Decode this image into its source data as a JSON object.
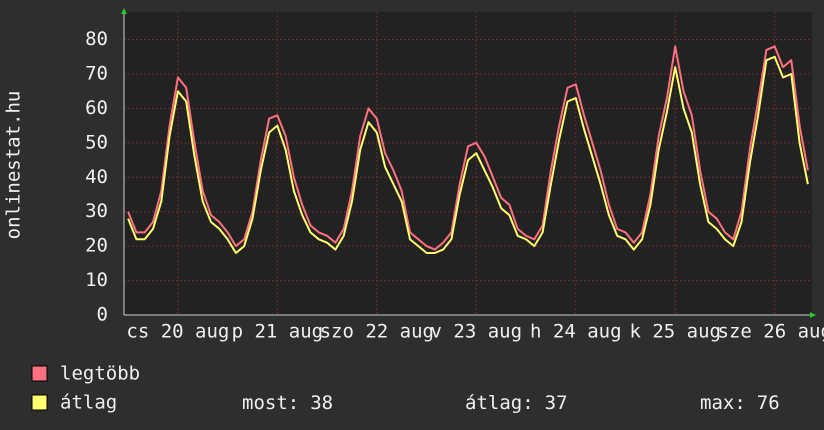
{
  "chart_data": {
    "type": "line",
    "ylabel": "onlinestat.hu",
    "x": [
      -12,
      -10,
      -8,
      -6,
      -4,
      -2,
      0,
      2,
      4,
      6,
      8,
      10,
      12,
      14,
      16,
      18,
      20,
      22,
      24,
      26,
      28,
      30,
      32,
      34,
      36,
      38,
      40,
      42,
      44,
      46,
      48,
      50,
      52,
      54,
      56,
      58,
      60,
      62,
      64,
      66,
      68,
      70,
      72,
      74,
      76,
      78,
      80,
      82,
      84,
      86,
      88,
      90,
      92,
      94,
      96,
      98,
      100,
      102,
      104,
      106,
      108,
      110,
      112,
      114,
      116,
      118,
      120,
      122,
      124,
      126,
      128,
      130,
      132,
      134,
      136,
      138,
      140,
      142,
      144,
      146,
      148,
      150,
      152
    ],
    "series": [
      {
        "name": "legtöbb",
        "color": "#ff7080",
        "values": [
          30,
          24,
          24,
          27,
          36,
          55,
          69,
          66,
          50,
          36,
          29,
          27,
          24,
          20,
          22,
          30,
          45,
          57,
          58,
          52,
          40,
          32,
          26,
          24,
          23,
          21,
          25,
          36,
          52,
          60,
          57,
          47,
          42,
          36,
          24,
          22,
          20,
          19,
          21,
          24,
          38,
          49,
          50,
          46,
          40,
          34,
          32,
          25,
          23,
          22,
          26,
          42,
          55,
          66,
          67,
          58,
          50,
          42,
          32,
          25,
          24,
          21,
          24,
          35,
          52,
          63,
          78,
          65,
          58,
          42,
          30,
          28,
          24,
          22,
          30,
          48,
          62,
          77,
          78,
          72,
          74,
          55,
          42
        ]
      },
      {
        "name": "átlag",
        "color": "#ffff70",
        "values": [
          28,
          22,
          22,
          25,
          33,
          52,
          65,
          62,
          46,
          33,
          27,
          25,
          22,
          18,
          20,
          28,
          42,
          53,
          55,
          48,
          36,
          29,
          24,
          22,
          21,
          19,
          23,
          33,
          48,
          56,
          53,
          43,
          38,
          33,
          22,
          20,
          18,
          18,
          19,
          22,
          35,
          45,
          47,
          42,
          37,
          31,
          29,
          23,
          22,
          20,
          24,
          38,
          51,
          62,
          63,
          54,
          46,
          38,
          29,
          23,
          22,
          19,
          22,
          32,
          48,
          59,
          72,
          60,
          53,
          38,
          27,
          25,
          22,
          20,
          27,
          44,
          58,
          74,
          75,
          69,
          70,
          50,
          38
        ]
      }
    ],
    "xlim": [
      -13,
      153
    ],
    "ylim": [
      0,
      88
    ],
    "xticks": [
      {
        "value": 0,
        "label": "cs 20 aug"
      },
      {
        "value": 24,
        "label": "p 21 aug"
      },
      {
        "value": 48,
        "label": "szo 22 aug"
      },
      {
        "value": 72,
        "label": "v 23 aug"
      },
      {
        "value": 96,
        "label": "h 24 aug"
      },
      {
        "value": 120,
        "label": "k 25 aug"
      },
      {
        "value": 144,
        "label": "sze 26 aug"
      }
    ],
    "yticks": [
      0,
      10,
      20,
      30,
      40,
      50,
      60,
      70,
      80
    ],
    "grid": true,
    "stats": [
      {
        "label": "most:",
        "value": 38
      },
      {
        "label": "átlag:",
        "value": 37
      },
      {
        "label": "max:",
        "value": 76
      }
    ]
  }
}
